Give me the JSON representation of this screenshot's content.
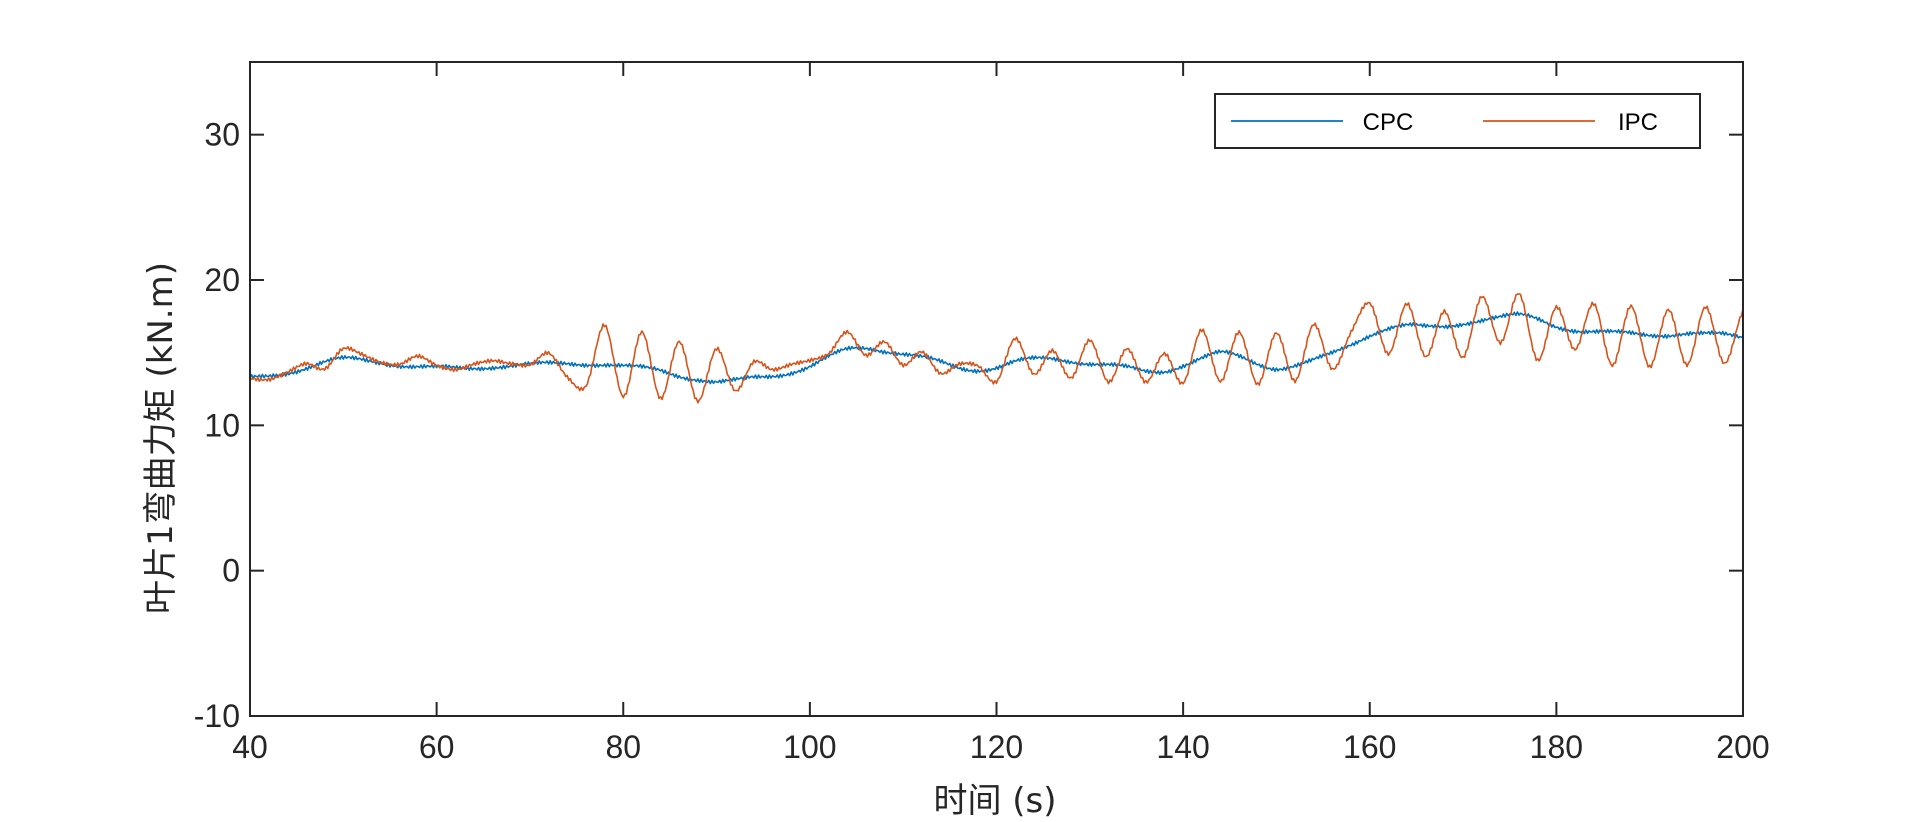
{
  "chart_data": {
    "type": "line",
    "title": "",
    "xlabel": "时间 (s)",
    "ylabel": "叶片1弯曲力矩 (kN.m)",
    "xlim": [
      40,
      200
    ],
    "ylim": [
      -10,
      35
    ],
    "xticks": [
      40,
      60,
      80,
      100,
      120,
      140,
      160,
      180,
      200
    ],
    "yticks": [
      -10,
      0,
      10,
      20,
      30
    ],
    "grid": false,
    "legend": {
      "placement": "top-right",
      "orientation": "horizontal"
    },
    "x": [
      40,
      42,
      44,
      46,
      48,
      50,
      52,
      54,
      56,
      58,
      60,
      62,
      64,
      66,
      68,
      70,
      72,
      74,
      76,
      78,
      80,
      82,
      84,
      86,
      88,
      90,
      92,
      94,
      96,
      98,
      100,
      102,
      104,
      106,
      108,
      110,
      112,
      114,
      116,
      118,
      120,
      122,
      124,
      126,
      128,
      130,
      132,
      134,
      136,
      138,
      140,
      142,
      144,
      146,
      148,
      150,
      152,
      154,
      156,
      158,
      160,
      162,
      164,
      166,
      168,
      170,
      172,
      174,
      176,
      178,
      180,
      182,
      184,
      186,
      188,
      190,
      192,
      194,
      196,
      198,
      200
    ],
    "series": [
      {
        "name": "CPC",
        "color": "#0072BD",
        "values": [
          13.2,
          13.4,
          13.7,
          14.0,
          14.3,
          14.5,
          14.5,
          14.4,
          14.2,
          14.0,
          13.9,
          13.9,
          14.0,
          14.1,
          14.1,
          14.1,
          14.2,
          14.3,
          14.3,
          14.2,
          14.0,
          13.9,
          13.8,
          13.5,
          13.2,
          12.9,
          13.0,
          13.3,
          13.5,
          13.7,
          14.0,
          14.6,
          15.2,
          15.4,
          15.2,
          14.9,
          14.6,
          14.3,
          14.0,
          13.9,
          14.0,
          14.3,
          14.5,
          14.6,
          14.5,
          14.3,
          14.1,
          13.9,
          13.7,
          13.8,
          14.2,
          14.6,
          14.9,
          14.7,
          14.3,
          14.0,
          14.1,
          14.4,
          14.9,
          15.6,
          16.3,
          16.7,
          16.8,
          16.7,
          16.8,
          17.1,
          17.3,
          17.4,
          17.5,
          17.3,
          16.9,
          16.6,
          16.4,
          16.3,
          16.3,
          16.3,
          16.3,
          16.3,
          16.2,
          16.2,
          16.1
        ]
      },
      {
        "name": "IPC",
        "color": "#D95319",
        "values": [
          13.2,
          13.3,
          13.8,
          14.2,
          13.7,
          15.2,
          15.0,
          14.5,
          14.2,
          14.6,
          14.0,
          13.9,
          14.4,
          14.5,
          14.1,
          14.0,
          15.0,
          13.5,
          12.8,
          16.8,
          11.8,
          16.4,
          12.0,
          15.9,
          11.6,
          15.1,
          12.3,
          14.5,
          14.0,
          14.2,
          14.3,
          14.8,
          16.5,
          15.0,
          15.8,
          14.0,
          14.9,
          13.6,
          14.4,
          14.2,
          12.9,
          15.8,
          13.5,
          15.3,
          13.4,
          15.8,
          12.8,
          15.2,
          13.1,
          15.1,
          12.9,
          16.4,
          12.9,
          16.5,
          13.0,
          16.4,
          12.9,
          16.8,
          13.9,
          16.6,
          18.5,
          14.8,
          18.2,
          14.7,
          18.0,
          14.8,
          18.8,
          15.5,
          19.0,
          14.6,
          18.3,
          15.2,
          18.2,
          14.0,
          18.3,
          14.2,
          18.0,
          14.0,
          18.0,
          14.3,
          18.0
        ]
      }
    ]
  }
}
